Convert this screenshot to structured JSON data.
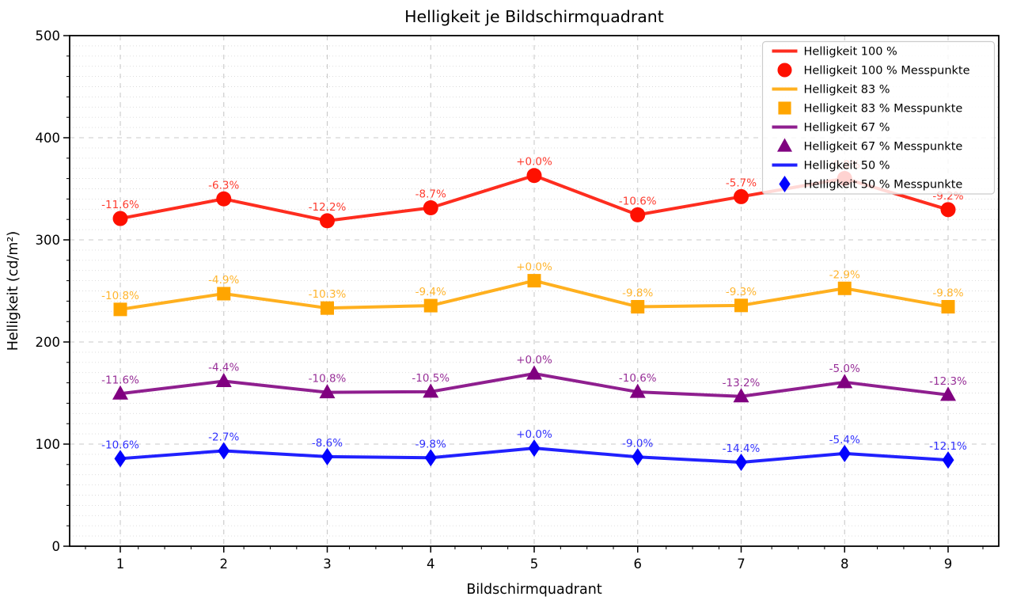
{
  "title": "Helligkeit je Bildschirmquadrant",
  "chart_data": {
    "type": "line",
    "title": "Helligkeit je Bildschirmquadrant",
    "xlabel": "Bildschirmquadrant",
    "ylabel": "Helligkeit (cd/m²)",
    "x": [
      1,
      2,
      3,
      4,
      5,
      6,
      7,
      8,
      9
    ],
    "xlim": [
      0.6,
      9.4
    ],
    "ylim": [
      0,
      500
    ],
    "yticks": [
      0,
      100,
      200,
      300,
      400,
      500
    ],
    "grid": {
      "major": "dashed",
      "minor_y": "dotted"
    },
    "legend_position": "upper right",
    "series": [
      {
        "name": "Helligkeit 100 %",
        "legend_line_label": "Helligkeit 100 %",
        "legend_marker_label": "Helligkeit 100 % Messpunkte",
        "color": "#fe1000",
        "marker": "circle",
        "values": [
          320.9,
          340.1,
          318.7,
          331.4,
          363.0,
          324.5,
          342.3,
          360.1,
          329.6
        ],
        "labels": [
          "-11.6%",
          "-6.3%",
          "-12.2%",
          "-8.7%",
          "+0.0%",
          "-10.6%",
          "-5.7%",
          "-0.8%",
          "-9.2%"
        ]
      },
      {
        "name": "Helligkeit 83 %",
        "legend_line_label": "Helligkeit 83 %",
        "legend_marker_label": "Helligkeit 83 % Messpunkte",
        "color": "#ffa500",
        "marker": "square",
        "values": [
          231.9,
          247.3,
          233.2,
          235.6,
          260.0,
          234.5,
          235.8,
          252.5,
          234.5
        ],
        "labels": [
          "-10.8%",
          "-4.9%",
          "-10.3%",
          "-9.4%",
          "+0.0%",
          "-9.8%",
          "-9.3%",
          "-2.9%",
          "-9.8%"
        ]
      },
      {
        "name": "Helligkeit 67 %",
        "legend_line_label": "Helligkeit 67 %",
        "legend_marker_label": "Helligkeit 67 % Messpunkte",
        "color": "#800080",
        "marker": "triangle",
        "values": [
          149.4,
          161.6,
          150.7,
          151.3,
          169.0,
          151.1,
          146.7,
          160.6,
          148.2
        ],
        "labels": [
          "-11.6%",
          "-4.4%",
          "-10.8%",
          "-10.5%",
          "+0.0%",
          "-10.6%",
          "-13.2%",
          "-5.0%",
          "-12.3%"
        ]
      },
      {
        "name": "Helligkeit 50 %",
        "legend_line_label": "Helligkeit 50 %",
        "legend_marker_label": "Helligkeit 50 % Messpunkte",
        "color": "#0202fe",
        "marker": "diamond",
        "values": [
          85.8,
          93.4,
          87.7,
          86.6,
          96.0,
          87.4,
          82.2,
          90.8,
          84.4
        ],
        "labels": [
          "-10.6%",
          "-2.7%",
          "-8.6%",
          "-9.8%",
          "+0.0%",
          "-9.0%",
          "-14.4%",
          "-5.4%",
          "-12.1%"
        ]
      }
    ]
  },
  "colors": {
    "axis": "#000000",
    "grid_major": "#c9c9c9",
    "grid_minor": "#d9d9d9",
    "legend_border": "#cccccc",
    "legend_bg": "#ffffff",
    "text": "#000000"
  }
}
